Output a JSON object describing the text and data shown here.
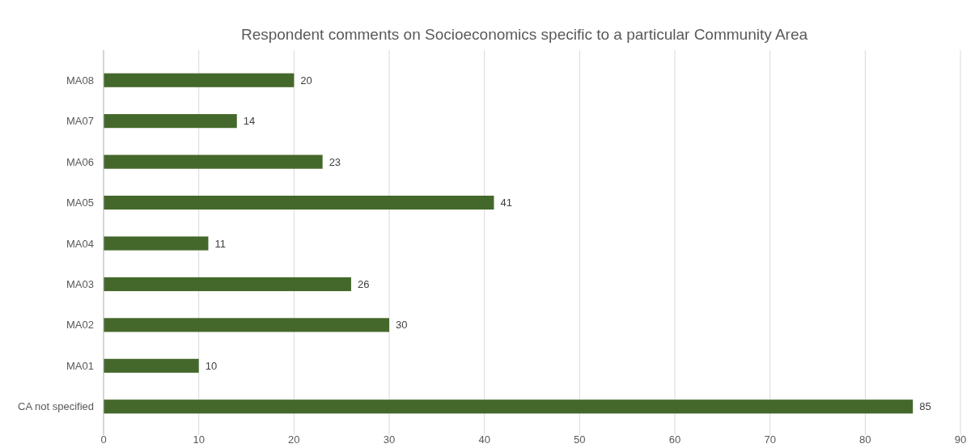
{
  "chart_data": {
    "type": "bar",
    "orientation": "horizontal",
    "title": "Respondent comments on Socioeconomics specific to a particular Community Area",
    "categories": [
      "MA08",
      "MA07",
      "MA06",
      "MA05",
      "MA04",
      "MA03",
      "MA02",
      "MA01",
      "CA not specified"
    ],
    "values": [
      20,
      14,
      23,
      41,
      11,
      26,
      30,
      10,
      85
    ],
    "color": "#44682b",
    "xlim": [
      0,
      90
    ],
    "xticks": [
      0,
      10,
      20,
      30,
      40,
      50,
      60,
      70,
      80,
      90
    ],
    "grid": "x",
    "data_labels": true
  }
}
